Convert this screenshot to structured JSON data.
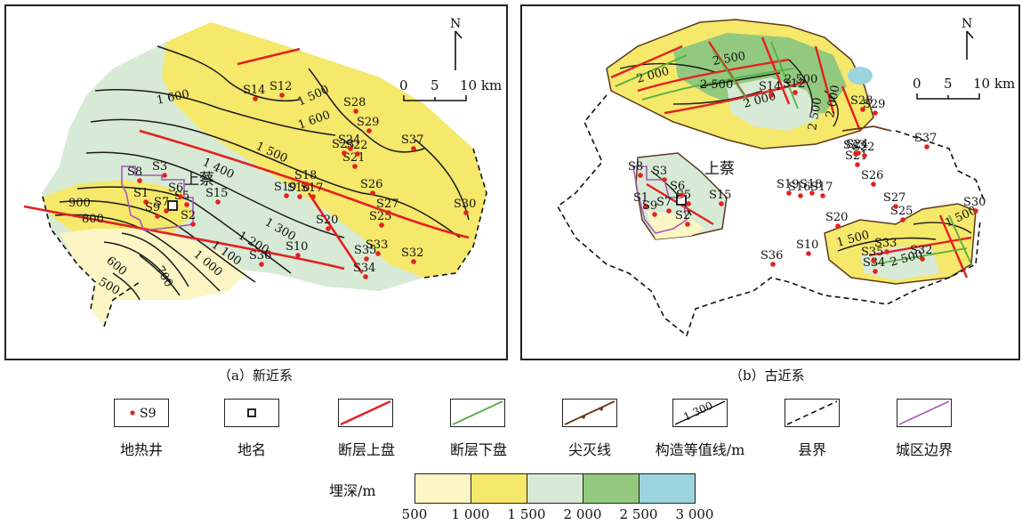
{
  "panel_a": {
    "caption": "（a）新近系",
    "place": "上蔡",
    "north": "N",
    "scale": {
      "t0": "0",
      "t1": "5",
      "t2": "10 km"
    },
    "contours": [
      "1 600",
      "1 500",
      "1 600",
      "1 500",
      "1 400",
      "1 300",
      "1 200",
      "1 100",
      "1 000",
      "900",
      "800",
      "700",
      "600",
      "500"
    ],
    "wells": [
      "S1",
      "S2",
      "S3",
      "S5",
      "S6",
      "S7",
      "S8",
      "S9",
      "S10",
      "S12",
      "S14",
      "S15",
      "S16",
      "S17",
      "S18",
      "S19",
      "S20",
      "S21",
      "S22",
      "S23",
      "S24",
      "S25",
      "S26",
      "S27",
      "S28",
      "S29",
      "S30",
      "S32",
      "S33",
      "S34",
      "S35",
      "S36",
      "S37"
    ]
  },
  "panel_b": {
    "caption": "（b）古近系",
    "place": "上蔡",
    "north": "N",
    "scale": {
      "t0": "0",
      "t1": "5",
      "t2": "10 km"
    },
    "contours": [
      "2 500",
      "2 000",
      "2 500",
      "2 500",
      "2 000",
      "2 500",
      "2 000",
      "1 500",
      "2 500",
      "1 500"
    ],
    "wells": [
      "S1",
      "S2",
      "S3",
      "S5",
      "S6",
      "S7",
      "S8",
      "S9",
      "S10",
      "S12",
      "S14",
      "S15",
      "S16",
      "S17",
      "S18",
      "S19",
      "S20",
      "S21",
      "S22",
      "S23",
      "S24",
      "S25",
      "S26",
      "S27",
      "S28",
      "S29",
      "S30",
      "S32",
      "S33",
      "S34",
      "S35",
      "S36",
      "S37"
    ]
  },
  "legend": {
    "well_sample": "S9",
    "items": [
      "地热井",
      "地名",
      "断层上盘",
      "断层下盘",
      "尖灭线",
      "构造等值线/m",
      "县界",
      "城区边界"
    ],
    "contour_sample": "1 300"
  },
  "depth_scale": {
    "label": "埋深/m",
    "ticks": [
      "500",
      "1 000",
      "1 500",
      "2 000",
      "2 500",
      "3 000"
    ],
    "colors": [
      "#fbf6c4",
      "#f5e86a",
      "#d7ead5",
      "#93c97f",
      "#9bd3de"
    ]
  }
}
